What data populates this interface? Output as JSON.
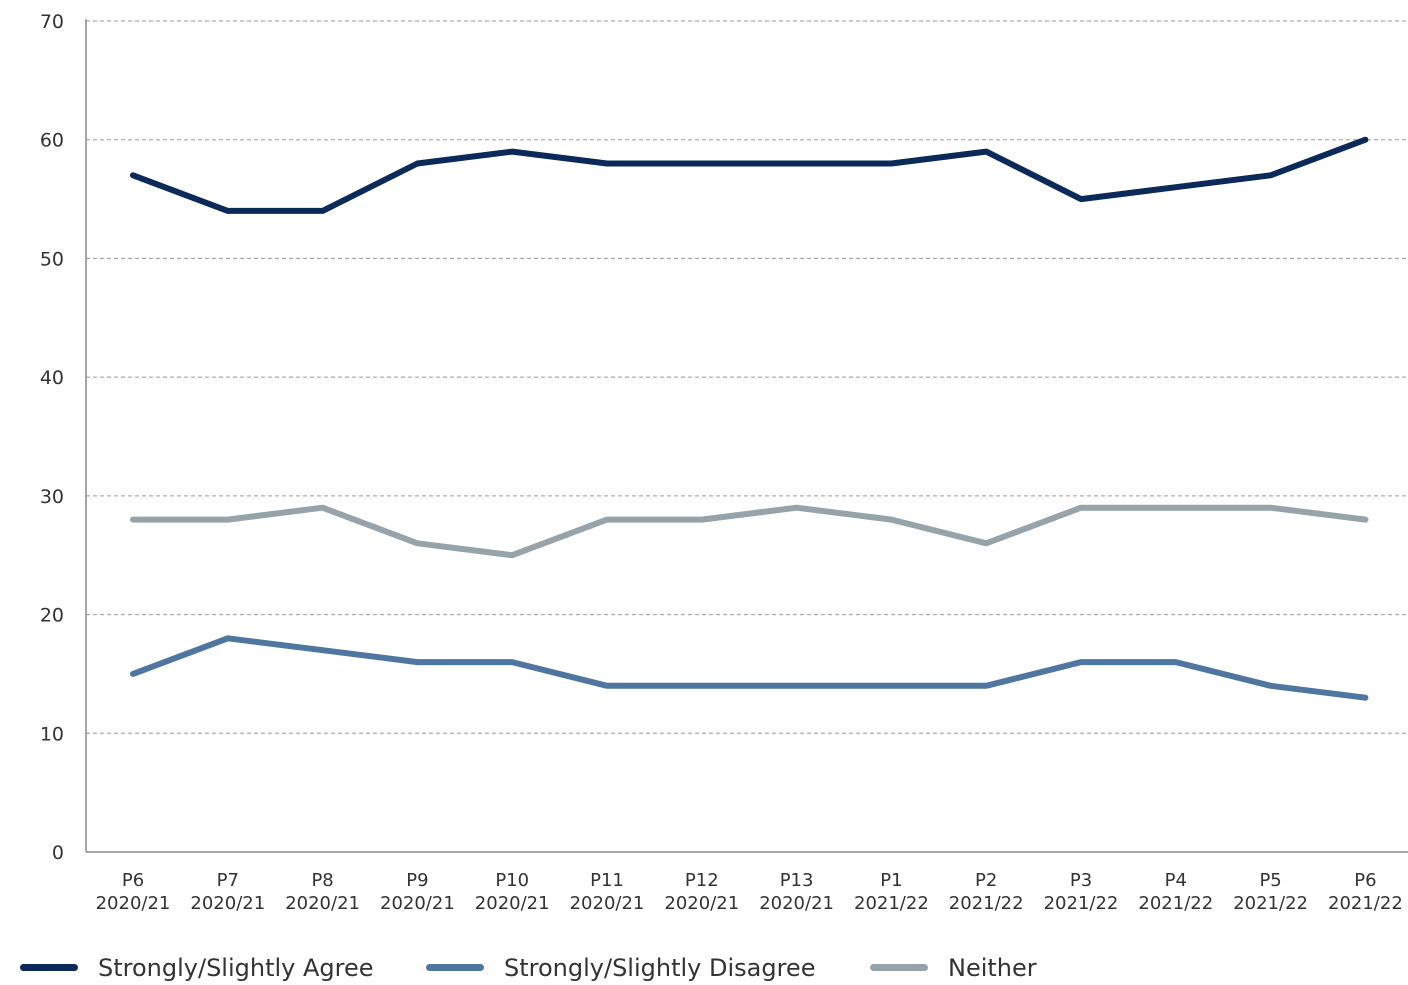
{
  "chart_data": {
    "type": "line",
    "categories": [
      [
        "P6",
        "2020/21"
      ],
      [
        "P7",
        "2020/21"
      ],
      [
        "P8",
        "2020/21"
      ],
      [
        "P9",
        "2020/21"
      ],
      [
        "P10",
        "2020/21"
      ],
      [
        "P11",
        "2020/21"
      ],
      [
        "P12",
        "2020/21"
      ],
      [
        "P13",
        "2020/21"
      ],
      [
        "P1",
        "2021/22"
      ],
      [
        "P2",
        "2021/22"
      ],
      [
        "P3",
        "2021/22"
      ],
      [
        "P4",
        "2021/22"
      ],
      [
        "P5",
        "2021/22"
      ],
      [
        "P6",
        "2021/22"
      ]
    ],
    "series": [
      {
        "name": "Strongly/Slightly Agree",
        "color": "#0b2a5a",
        "values": [
          57,
          54,
          54,
          58,
          59,
          58,
          58,
          58,
          58,
          59,
          55,
          56,
          57,
          60
        ]
      },
      {
        "name": "Strongly/Slightly Disagree",
        "color": "#4f76a0",
        "values": [
          15,
          18,
          17,
          16,
          16,
          14,
          14,
          14,
          14,
          14,
          16,
          16,
          14,
          13
        ]
      },
      {
        "name": "Neither",
        "color": "#97a3ab",
        "values": [
          28,
          28,
          29,
          26,
          25,
          28,
          28,
          29,
          28,
          26,
          29,
          29,
          29,
          28
        ]
      }
    ],
    "ylim": [
      0,
      70
    ],
    "yticks": [
      0,
      10,
      20,
      30,
      40,
      50,
      60,
      70
    ],
    "grid": true,
    "legend_position": "bottom"
  }
}
